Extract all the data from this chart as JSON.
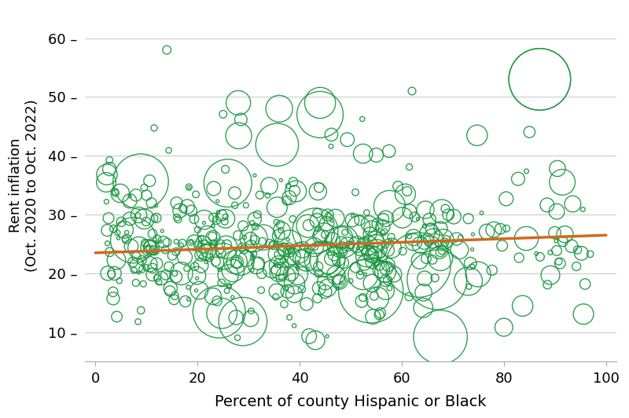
{
  "title": "",
  "xlabel": "Percent of county Hispanic or Black",
  "ylabel": "Rent inflation\n(Oct. 2020 to Oct. 2022)",
  "xlim": [
    -2,
    102
  ],
  "ylim": [
    5,
    65
  ],
  "xticks": [
    0,
    20,
    40,
    60,
    80,
    100
  ],
  "yticks": [
    10,
    20,
    30,
    40,
    50,
    60
  ],
  "trend_line": {
    "x0": 0,
    "x1": 100,
    "y0": 23.5,
    "y1": 26.5
  },
  "scatter_color": "#1a9641",
  "trend_color": "#d2691e",
  "background_color": "#ffffff",
  "grid_color": "#cccccc",
  "seed": 12,
  "n_points": 500,
  "xlabel_fontsize": 14,
  "ylabel_fontsize": 13,
  "tick_fontsize": 13
}
